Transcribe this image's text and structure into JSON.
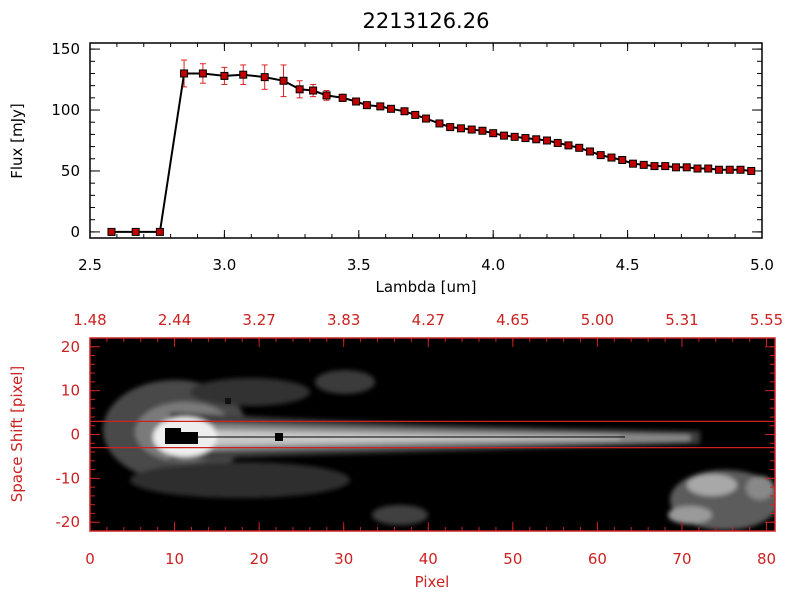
{
  "chart_data": [
    {
      "type": "line",
      "title": "2213126.26",
      "xlabel": "Lambda [um]",
      "ylabel": "Flux [mJy]",
      "xlim": [
        2.5,
        5.0
      ],
      "ylim": [
        -5,
        155
      ],
      "x_ticks": [
        "2.5",
        "3.0",
        "3.5",
        "4.0",
        "4.5",
        "5.0"
      ],
      "x_tick_values": [
        2.5,
        3.0,
        3.5,
        4.0,
        4.5,
        5.0
      ],
      "y_ticks": [
        "0",
        "50",
        "100",
        "150"
      ],
      "y_tick_values": [
        0,
        50,
        100,
        150
      ],
      "series": [
        {
          "line_color": "#000000",
          "marker_color": "#c00000",
          "errorbar_color": "#dd2020",
          "x": [
            2.58,
            2.67,
            2.76,
            2.85,
            2.92,
            3.0,
            3.07,
            3.15,
            3.22,
            3.28,
            3.33,
            3.38,
            3.44,
            3.49,
            3.53,
            3.58,
            3.62,
            3.67,
            3.71,
            3.75,
            3.8,
            3.84,
            3.88,
            3.92,
            3.96,
            4.0,
            4.04,
            4.08,
            4.12,
            4.16,
            4.2,
            4.24,
            4.28,
            4.32,
            4.36,
            4.4,
            4.44,
            4.48,
            4.52,
            4.56,
            4.6,
            4.64,
            4.68,
            4.72,
            4.76,
            4.8,
            4.84,
            4.88,
            4.92,
            4.96
          ],
          "y": [
            0,
            0,
            0,
            130,
            130,
            128,
            129,
            127,
            124,
            117,
            116,
            112,
            110,
            107,
            104,
            103,
            101,
            99,
            96,
            93,
            89,
            86,
            85,
            84,
            83,
            81,
            79,
            78,
            77,
            76,
            75,
            73,
            71,
            69,
            66,
            63,
            61,
            59,
            56,
            55,
            54,
            54,
            53,
            53,
            52,
            52,
            51,
            51,
            51,
            50
          ],
          "yerr": [
            0,
            0,
            0,
            11,
            8,
            7,
            8,
            10,
            13,
            7,
            5,
            4,
            3,
            2,
            2,
            2,
            2,
            2,
            2,
            2,
            2,
            2,
            2,
            2,
            2,
            2,
            2,
            2,
            2,
            2,
            2,
            2,
            2,
            2,
            2,
            2,
            2,
            2,
            2,
            2,
            2,
            2,
            2,
            2,
            2,
            2,
            2,
            2,
            2,
            2
          ]
        }
      ]
    },
    {
      "type": "heatmap",
      "xlabel": "Pixel",
      "ylabel": "Space Shift [pixel]",
      "xlim": [
        0,
        81
      ],
      "ylim": [
        -22,
        22
      ],
      "x_ticks": [
        "0",
        "10",
        "20",
        "30",
        "40",
        "50",
        "60",
        "70",
        "80"
      ],
      "x_tick_values": [
        0,
        10,
        20,
        30,
        40,
        50,
        60,
        70,
        80
      ],
      "y_ticks": [
        "20",
        "10",
        "0",
        "-10",
        "-20"
      ],
      "y_tick_values": [
        20,
        10,
        0,
        -10,
        -20
      ],
      "top_axis_ticks": [
        "1.48",
        "2.44",
        "3.27",
        "3.83",
        "4.27",
        "4.65",
        "5.00",
        "5.31",
        "5.55"
      ],
      "top_axis_tick_values": [
        0,
        10,
        20,
        30,
        40,
        50,
        60,
        70,
        80
      ],
      "aperture_lines_y": [
        3,
        -3
      ],
      "axis_color": "#cc2222",
      "aperture_line_color": "#cc2222"
    }
  ]
}
